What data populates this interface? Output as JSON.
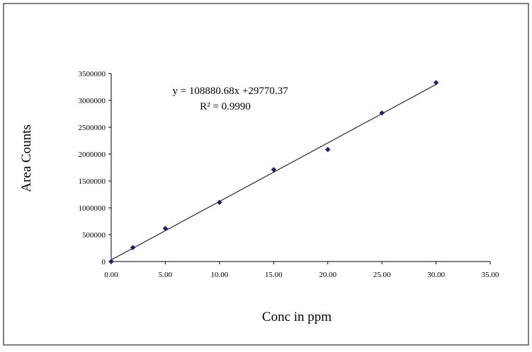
{
  "chart_data": {
    "type": "scatter",
    "title": "",
    "xlabel": "Conc in ppm",
    "ylabel": "Area Counts",
    "xlim": [
      0,
      35
    ],
    "ylim": [
      0,
      3500000
    ],
    "xticks": [
      0,
      5,
      10,
      15,
      20,
      25,
      30,
      35
    ],
    "yticks": [
      0,
      500000,
      1000000,
      1500000,
      2000000,
      2500000,
      3000000,
      3500000
    ],
    "xtick_labels": [
      "0.00",
      "5.00",
      "10.00",
      "15.00",
      "20.00",
      "25.00",
      "30.00",
      "35.00"
    ],
    "ytick_labels": [
      "0",
      "500000",
      "1000000",
      "1500000",
      "2000000",
      "2500000",
      "3000000",
      "3500000"
    ],
    "grid": false,
    "legend": "none",
    "series": [
      {
        "x": [
          0,
          2,
          5,
          10,
          15,
          20,
          25,
          30
        ],
        "y": [
          0,
          260000,
          615000,
          1100000,
          1710000,
          2085000,
          2765000,
          3330000
        ],
        "marker": "diamond",
        "color": "#1f1f78"
      }
    ],
    "trendline": {
      "slope": 108880.68,
      "intercept": 29770.37,
      "x_range": [
        0,
        30
      ],
      "color": "#000000"
    },
    "annotations": {
      "equation": "y = 108880.68x +29770.37",
      "r_squared": "R² = 0.9990"
    }
  }
}
